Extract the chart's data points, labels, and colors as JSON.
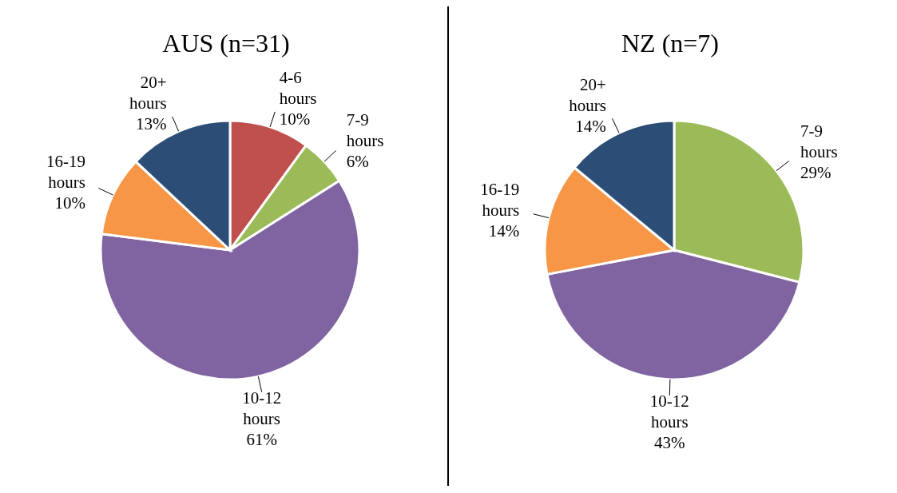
{
  "chart_data": [
    {
      "type": "pie",
      "title": "AUS (n=31)",
      "categories": [
        "4-6 hours",
        "7-9 hours",
        "10-12 hours",
        "16-19 hours",
        "20+ hours"
      ],
      "values": [
        10,
        6,
        61,
        10,
        13
      ],
      "value_labels": [
        "10%",
        "6%",
        "61%",
        "10%",
        "13%"
      ],
      "colors": [
        "#c0504d",
        "#9bbb59",
        "#8064a2",
        "#f79646",
        "#2c4d75"
      ]
    },
    {
      "type": "pie",
      "title": "NZ (n=7)",
      "categories": [
        "7-9 hours",
        "10-12 hours",
        "16-19 hours",
        "20+ hours"
      ],
      "values": [
        29,
        43,
        14,
        14
      ],
      "value_labels": [
        "29%",
        "43%",
        "14%",
        "14%"
      ],
      "colors": [
        "#9bbb59",
        "#8064a2",
        "#f79646",
        "#2c4d75"
      ]
    }
  ]
}
